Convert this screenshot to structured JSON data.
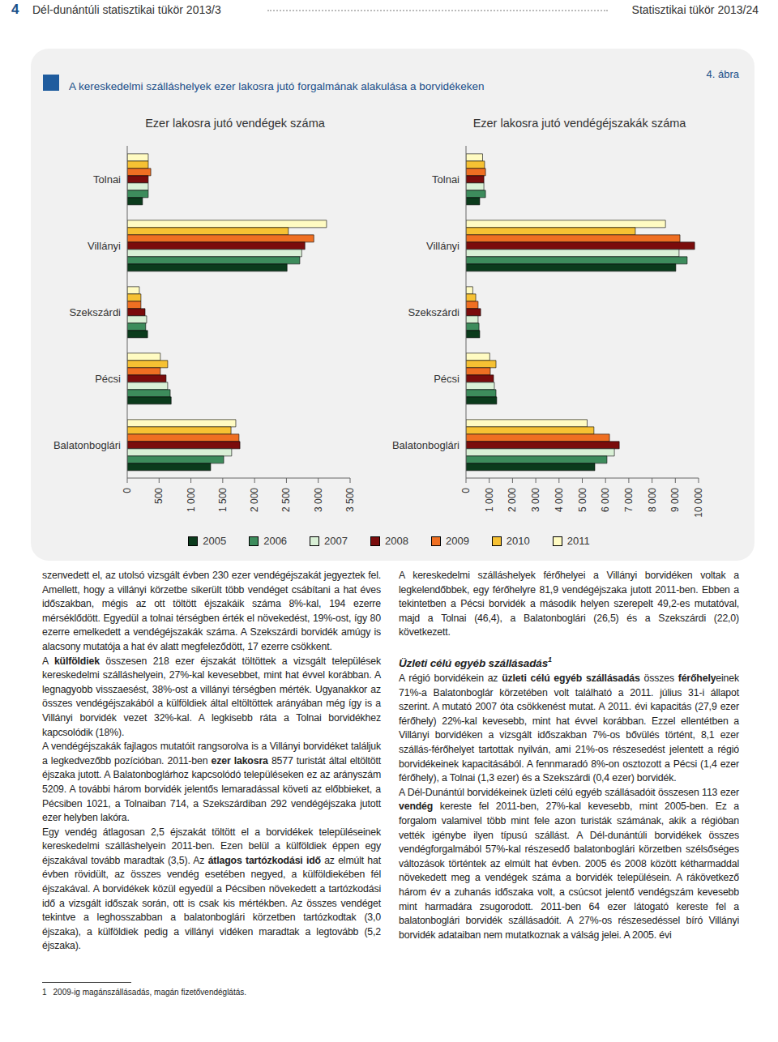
{
  "header": {
    "page": "4",
    "left": "Dél-dunántúli statisztikai tükör 2013/3",
    "right": "Statisztikai tükör 2013/24"
  },
  "figure": {
    "title": "A kereskedelmi szálláshelyek ezer lakosra jutó forgalmának alakulása a borvidékeken",
    "label": "4. ábra"
  },
  "chart_data": [
    {
      "type": "bar",
      "orientation": "horizontal",
      "title": "Ezer lakosra jutó vendégek száma",
      "categories": [
        "Tolnai",
        "Villányi",
        "Szekszárdi",
        "Pécsi",
        "Balatonboglári"
      ],
      "series": [
        {
          "name": "2005",
          "color": "#0b3b1c",
          "values": [
            240,
            2510,
            320,
            690,
            1310
          ]
        },
        {
          "name": "2006",
          "color": "#3d8c5c",
          "values": [
            330,
            2710,
            290,
            675,
            1515
          ]
        },
        {
          "name": "2007",
          "color": "#d9f0d6",
          "values": [
            330,
            2740,
            305,
            635,
            1640
          ]
        },
        {
          "name": "2008",
          "color": "#7a0c0c",
          "values": [
            330,
            2790,
            280,
            610,
            1770
          ]
        },
        {
          "name": "2009",
          "color": "#ef6f22",
          "values": [
            370,
            2930,
            215,
            520,
            1755
          ]
        },
        {
          "name": "2010",
          "color": "#f6c133",
          "values": [
            330,
            2530,
            215,
            635,
            1630
          ]
        },
        {
          "name": "2011",
          "color": "#fffbc2",
          "values": [
            330,
            3130,
            190,
            520,
            1705
          ]
        }
      ],
      "xlim": [
        0,
        3500
      ],
      "xticks": [
        0,
        500,
        {
          "value": 1000,
          "label": "1 000"
        },
        {
          "value": 1500,
          "label": "1 500"
        },
        {
          "value": 2000,
          "label": "2 000"
        },
        {
          "value": 2500,
          "label": "2 500"
        },
        {
          "value": 3000,
          "label": "3 000"
        },
        {
          "value": 3500,
          "label": "3 500"
        }
      ]
    },
    {
      "type": "bar",
      "orientation": "horizontal",
      "title": "Ezer lakosra jutó vendégéjszakák száma",
      "categories": [
        "Tolnai",
        "Villányi",
        "Szekszárdi",
        "Pécsi",
        "Balatonboglári"
      ],
      "series": [
        {
          "name": "2005",
          "color": "#0b3b1c",
          "values": [
            590,
            9020,
            590,
            1320,
            5540
          ]
        },
        {
          "name": "2006",
          "color": "#3d8c5c",
          "values": [
            840,
            9510,
            560,
            1290,
            6060
          ]
        },
        {
          "name": "2007",
          "color": "#d9f0d6",
          "values": [
            770,
            9160,
            520,
            1220,
            6380
          ]
        },
        {
          "name": "2008",
          "color": "#7a0c0c",
          "values": [
            770,
            9830,
            630,
            1185,
            6590
          ]
        },
        {
          "name": "2009",
          "color": "#ef6f22",
          "values": [
            840,
            9200,
            520,
            1045,
            6170
          ]
        },
        {
          "name": "2010",
          "color": "#f6c133",
          "values": [
            800,
            7280,
            420,
            1290,
            5500
          ]
        },
        {
          "name": "2011",
          "color": "#fffbc2",
          "values": [
            714,
            8577,
            292,
            1021,
            5209
          ]
        }
      ],
      "xlim": [
        0,
        10000
      ],
      "xticks": [
        0,
        {
          "value": 1000,
          "label": "1 000"
        },
        {
          "value": 2000,
          "label": "2 000"
        },
        {
          "value": 3000,
          "label": "3 000"
        },
        {
          "value": 4000,
          "label": "4 000"
        },
        {
          "value": 5000,
          "label": "5 000"
        },
        {
          "value": 6000,
          "label": "6 000"
        },
        {
          "value": 7000,
          "label": "7 000"
        },
        {
          "value": 8000,
          "label": "8 000"
        },
        {
          "value": 9000,
          "label": "9 000"
        },
        {
          "value": 10000,
          "label": "10 000"
        }
      ]
    }
  ],
  "text": {
    "left": [
      [
        "szenvedett el, az utolsó vizsgált évben 230 ezer vendégéjszakát jegyeztek fel. Amellett, hogy a villányi körzetbe sikerült több vendéget csábítani a hat éves időszakban, mégis az ott töltött éjszakáik száma 8%-kal, 194 ezerre mérséklődött. Egyedül a tolnai térségben érték el növekedést, 19%-ost, így 80 ezerre emelkedett a vendégéjszakák száma. A Szekszárdi borvidék amúgy is alacsony mutatója a hat év alatt megfeleződött, 17 ezerre csökkent."
      ],
      [
        "A ",
        {
          "bold": "külföldiek"
        },
        " összesen 218 ezer éjszakát töltöttek a vizsgált települések kereskedelmi szálláshelyein, 27%-kal kevesebbet, mint hat évvel korábban. A legnagyobb visszaesést, 38%-ost a villányi térségben mérték. Ugyanakkor az összes vendégéjszakából a külföldiek által eltöltöttek arányában még így is a Villányi borvidék vezet 32%-kal. A legkisebb ráta a Tolnai borvidékhez kapcsolódik (18%)."
      ],
      [
        "A vendégéjszakák fajlagos mutatóit rangsorolva is a Villányi borvidéket találjuk a legkedvezőbb pozícióban. 2011-ben ",
        {
          "bold": "ezer lakosra"
        },
        " 8577 turistát által eltöltött éjszaka jutott. A Balatonboglárhoz kapcsolódó településeken ez az arányszám 5209. A további három borvidék jelentős lemaradással követi az előbbieket, a Pécsiben 1021, a Tolnaiban 714, a Szekszárdiban 292 vendégéjszaka jutott ezer helyben lakóra."
      ],
      [
        "Egy vendég átlagosan 2,5 éjszakát töltött el a borvidékek településeinek kereskedelmi szálláshelyein 2011-ben. Ezen belül a külföldiek éppen egy éjszakával tovább maradtak (3,5). Az ",
        {
          "bold": "átlagos tartózkodási idő"
        },
        " az elmúlt hat évben rövidült, az összes vendég esetében negyed, a külföldiekében fél éjszakával. A borvidékek közül egyedül a Pécsiben növekedett a tartózkodási idő a vizsgált időszak során, ott is csak kis mértékben. Az összes vendéget tekintve a leghosszabban a balatonboglári körzetben tartózkodtak (3,0 éjszaka), a külföldiek pedig a villányi vidéken maradtak a legtovább (5,2 éjszaka)."
      ]
    ],
    "right_intro": [
      [
        "A kereskedelmi szálláshelyek férőhelyei a Villányi borvidéken voltak a legkelendőbbek, egy férőhelyre 81,9 vendégéjszaka jutott 2011-ben. Ebben a tekintetben a Pécsi borvidék a második helyen szerepelt 49,2-es mutatóval, majd a Tolnai (46,4), a Balatonboglári (26,5) és a Szekszárdi (22,0) következett."
      ]
    ],
    "heading": {
      "text": "Üzleti célú egyéb szállásadás",
      "mark": "1"
    },
    "right": [
      [
        "A régió borvidékein az ",
        {
          "bold": "üzleti célú egyéb szállásadás"
        },
        " összes ",
        {
          "bold": "férőhely"
        },
        "einek 71%-a Balatonboglár körzetében volt található a 2011. július 31-i állapot szerint. A mutató 2007 óta csökkenést mutat. A 2011. évi kapacitás (27,9 ezer férőhely) 22%-kal kevesebb, mint hat évvel korábban. Ezzel ellentétben a Villányi borvidéken a vizsgált időszakban 7%-os bővülés történt, 8,1 ezer szállás-férőhelyet tartottak nyilván, ami 21%-os részesedést jelentett a régió borvidékeinek kapacitásából. A fennmaradó 8%-on osztozott a Pécsi (1,4 ezer férőhely), a Tolnai (1,3 ezer) és a Szekszárdi (0,4 ezer) borvidék."
      ],
      [
        "A Dél-Dunántúl borvidékeinek üzleti célú egyéb szállásadóit összesen 113 ezer ",
        {
          "bold": "vendég"
        },
        " kereste fel 2011-ben, 27%-kal kevesebb, mint 2005-ben. Ez a forgalom valamivel több mint fele azon turisták számának, akik a régióban vették igénybe ilyen típusú szállást. A Dél-dunántúli borvidékek összes vendégforgalmából 57%-kal részesedő balatonboglári körzetben szélsőséges változások történtek az elmúlt hat évben. 2005 és 2008 között kétharmaddal növekedett meg a vendégek száma a borvidék településein. A rákövetkező három év a zuhanás időszaka volt, a csúcsot jelentő vendégszám kevesebb mint harmadára zsugorodott. 2011-ben 64 ezer látogató kereste fel a balatonboglári borvidék szállásadóit. A 27%-os részesedéssel bíró Villányi borvidék adataiban nem mutatkoznak a válság jelei. A 2005. évi"
      ]
    ]
  },
  "footnote": {
    "mark": "1",
    "text": "2009-ig magánszállásadás, magán fizetővendéglátás."
  }
}
